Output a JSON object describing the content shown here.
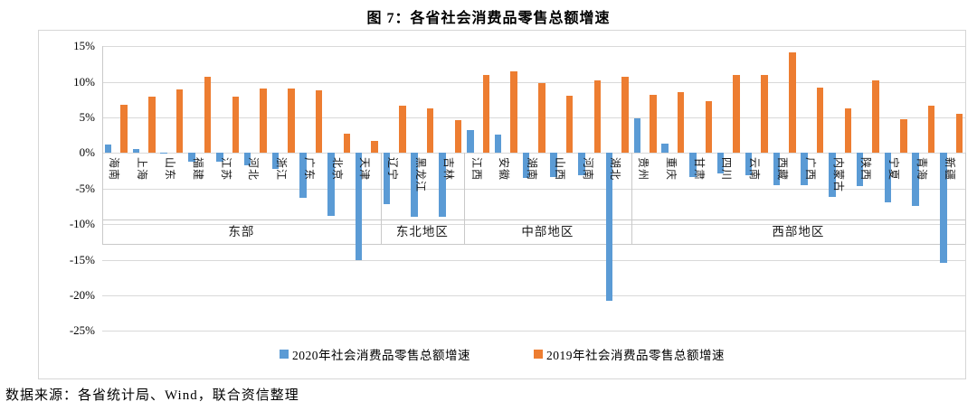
{
  "title": "图 7：各省社会消费品零售总额增速",
  "source_note": "数据来源：各省统计局、Wind，联合资信整理",
  "colors": {
    "series_2020": "#5B9BD5",
    "series_2019": "#ED7D31",
    "gridline": "#D9D9D9",
    "band_border": "#C9C9C9",
    "text": "#000000"
  },
  "chart_data": {
    "type": "bar",
    "title": "图 7：各省社会消费品零售总额增速",
    "categories": [
      "海南",
      "上海",
      "山东",
      "福建",
      "江苏",
      "河北",
      "浙江",
      "广东",
      "北京",
      "天津",
      "辽宁",
      "黑龙江",
      "吉林",
      "江西",
      "安徽",
      "湖南",
      "山西",
      "河南",
      "湖北",
      "贵州",
      "重庆",
      "甘肃",
      "四川",
      "云南",
      "西藏",
      "广西",
      "内蒙古",
      "陕西",
      "宁夏",
      "青海",
      "新疆"
    ],
    "series": [
      {
        "name": "2020年社会消费品零售总额增速",
        "color": "#5B9BD5",
        "values": [
          1.2,
          0.5,
          -0.1,
          -1.2,
          -1.3,
          -1.7,
          -2.2,
          -6.3,
          -8.9,
          -15.1,
          -7.2,
          -9.0,
          -9.0,
          3.2,
          2.6,
          -3.5,
          -3.4,
          -3.2,
          -20.8,
          4.9,
          1.3,
          -3.4,
          -2.9,
          -3.1,
          -4.6,
          -4.6,
          -6.2,
          -4.7,
          -7.0,
          -7.4,
          -15.5
        ]
      },
      {
        "name": "2019年社会消费品零售总额增速",
        "color": "#ED7D31",
        "values": [
          6.8,
          7.9,
          8.9,
          10.7,
          7.9,
          9.0,
          9.0,
          8.8,
          2.7,
          1.7,
          6.6,
          6.2,
          4.6,
          10.9,
          11.5,
          9.8,
          8.1,
          10.2,
          10.7,
          8.2,
          8.6,
          7.3,
          11.0,
          11.0,
          14.1,
          9.2,
          6.2,
          10.2,
          4.7,
          6.6,
          5.5
        ]
      }
    ],
    "groups": [
      {
        "label": "东部",
        "count": 10
      },
      {
        "label": "东北地区",
        "count": 3
      },
      {
        "label": "中部地区",
        "count": 6
      },
      {
        "label": "西部地区",
        "count": 12
      }
    ],
    "ylim": [
      -25,
      15
    ],
    "ytick_step": 5,
    "ytick_labels": [
      "15%",
      "10%",
      "5%",
      "0%",
      "-5%",
      "-10%",
      "-15%",
      "-20%",
      "-25%"
    ],
    "xlabel": "",
    "ylabel": "",
    "grid": true,
    "legend_position": "bottom"
  }
}
